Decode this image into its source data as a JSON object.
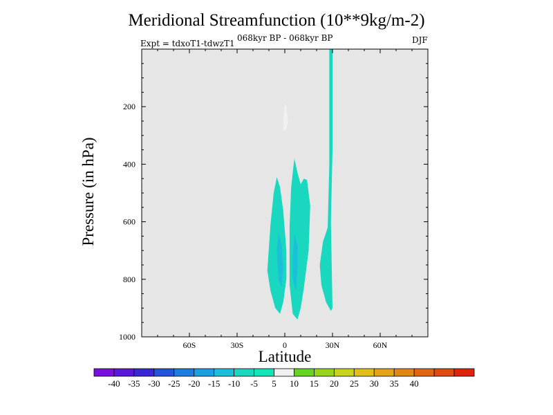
{
  "title": "Meridional Streamfunction (10**9kg/m-2)",
  "left_label": "Expt = tdxoT1-tdwzT1",
  "center_label": "068kyr BP - 068kyr BP",
  "right_label": "DJF",
  "chart_data": {
    "type": "heatmap",
    "title": "Meridional Streamfunction (10**9kg/m-2)",
    "xlabel": "Latitude",
    "ylabel": "Pressure (in hPa)",
    "xlim": [
      -90,
      90
    ],
    "ylim": [
      1000,
      0
    ],
    "x_ticks": [
      -60,
      -30,
      0,
      30,
      60
    ],
    "x_tick_labels": [
      "60S",
      "30S",
      "0",
      "30N",
      "60N"
    ],
    "y_ticks": [
      200,
      400,
      600,
      800,
      1000
    ],
    "y_tick_labels": [
      "200",
      "400",
      "600",
      "800",
      "1000"
    ],
    "regions": [
      {
        "name": "negative-cell-left",
        "level": -10,
        "points": [
          [
            -11,
            770
          ],
          [
            -9,
            610
          ],
          [
            -7,
            500
          ],
          [
            -5,
            445
          ],
          [
            -3,
            480
          ],
          [
            -1,
            560
          ],
          [
            1,
            700
          ],
          [
            1,
            800
          ],
          [
            -1,
            880
          ],
          [
            -3,
            920
          ],
          [
            -6,
            900
          ],
          [
            -9,
            840
          ]
        ]
      },
      {
        "name": "negative-cell-right",
        "level": -10,
        "points": [
          [
            3,
            620
          ],
          [
            4,
            480
          ],
          [
            6,
            380
          ],
          [
            8,
            430
          ],
          [
            10,
            470
          ],
          [
            12,
            450
          ],
          [
            14,
            455
          ],
          [
            16,
            545
          ],
          [
            15,
            700
          ],
          [
            12,
            830
          ],
          [
            10,
            900
          ],
          [
            8,
            940
          ],
          [
            5,
            920
          ],
          [
            3,
            820
          ]
        ]
      },
      {
        "name": "negative-core-left",
        "level": -15,
        "points": [
          [
            -5,
            700
          ],
          [
            -4,
            640
          ],
          [
            -2,
            680
          ],
          [
            -1,
            760
          ],
          [
            -2,
            830
          ],
          [
            -4,
            800
          ]
        ]
      },
      {
        "name": "negative-core-right",
        "level": -15,
        "points": [
          [
            5,
            720
          ],
          [
            6,
            640
          ],
          [
            8,
            680
          ],
          [
            8,
            760
          ],
          [
            7,
            840
          ],
          [
            5,
            800
          ]
        ]
      },
      {
        "name": "negative-cell-30n",
        "level": -10,
        "points": [
          [
            28,
            0
          ],
          [
            30,
            0
          ],
          [
            30,
            350
          ],
          [
            29,
            600
          ],
          [
            30,
            900
          ],
          [
            29,
            910
          ],
          [
            26,
            880
          ],
          [
            23,
            820
          ],
          [
            22,
            750
          ],
          [
            24,
            670
          ],
          [
            27,
            620
          ],
          [
            28,
            400
          ]
        ]
      },
      {
        "name": "positive-blob",
        "level": 5,
        "points": [
          [
            -1,
            240
          ],
          [
            0,
            190
          ],
          [
            1,
            200
          ],
          [
            2,
            250
          ],
          [
            1,
            280
          ],
          [
            -1,
            285
          ]
        ]
      }
    ],
    "colorbar": {
      "levels": [
        -40,
        -35,
        -30,
        -25,
        -20,
        -15,
        -10,
        -5,
        5,
        10,
        15,
        20,
        25,
        30,
        35,
        40
      ],
      "colors": [
        "#7a10e0",
        "#5b18dc",
        "#3a28d8",
        "#2454dc",
        "#1c7ce0",
        "#1aa0e0",
        "#1ac0d8",
        "#1ad8c0",
        "#12e6b8",
        "#f0f0f0",
        "#66d41e",
        "#98d41a",
        "#c8d41a",
        "#e0c014",
        "#e0a414",
        "#e08814",
        "#e0660f",
        "#e04a10",
        "#e0240c"
      ]
    }
  }
}
